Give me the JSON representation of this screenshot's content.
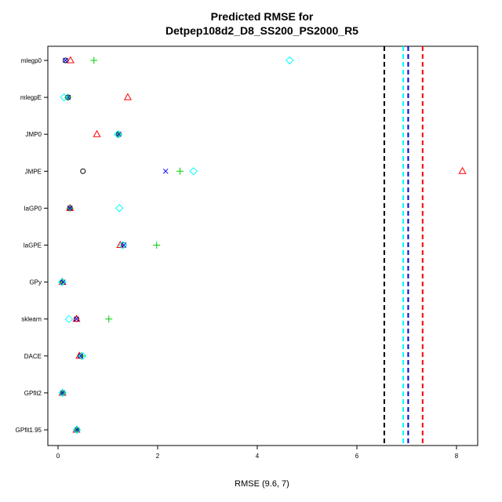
{
  "chart_data": {
    "type": "scatter",
    "title_line1": "Predicted RMSE for",
    "title_line2": "Detpep108d2_D8_SS200_PS2000_R5",
    "xlabel": "RMSE (9.6, 7)",
    "ylabel": "",
    "xlim": [
      -0.2,
      8.4
    ],
    "x_ticks": [
      "0",
      "2",
      "4",
      "6",
      "8"
    ],
    "categories": [
      "mlegp0",
      "mlegpE",
      "JMP0",
      "JMPE",
      "laGP0",
      "laGPE",
      "GPy",
      "sklearn",
      "DACE",
      "GPfit2",
      "GPfit1.95"
    ],
    "series": [
      {
        "symbol": "circle",
        "color": "#000000",
        "values": [
          0.15,
          0.2,
          1.22,
          0.5,
          0.24,
          1.32,
          0.09,
          0.37,
          0.45,
          0.1,
          0.38
        ]
      },
      {
        "symbol": "triangle",
        "color": "#ff0000",
        "values": [
          0.25,
          1.4,
          0.78,
          8.12,
          0.24,
          1.25,
          0.09,
          0.37,
          0.43,
          0.09,
          0.37
        ]
      },
      {
        "symbol": "plus",
        "color": "#00cd00",
        "values": [
          0.72,
          0.2,
          1.22,
          2.45,
          0.24,
          1.98,
          0.09,
          1.02,
          0.47,
          0.09,
          0.38
        ]
      },
      {
        "symbol": "x",
        "color": "#0000ff",
        "values": [
          0.15,
          0.2,
          1.22,
          2.16,
          0.24,
          1.32,
          0.1,
          0.37,
          0.45,
          0.09,
          0.38
        ]
      },
      {
        "symbol": "diamond",
        "color": "#00ffff",
        "values": [
          4.65,
          0.12,
          1.2,
          2.72,
          1.23,
          1.3,
          0.08,
          0.22,
          0.49,
          0.09,
          0.38
        ]
      }
    ],
    "vlines": [
      {
        "x": 6.55,
        "color": "#000000"
      },
      {
        "x": 6.93,
        "color": "#00ffff"
      },
      {
        "x": 7.03,
        "color": "#0000cd"
      },
      {
        "x": 7.32,
        "color": "#ff0000"
      }
    ],
    "grid": false
  }
}
